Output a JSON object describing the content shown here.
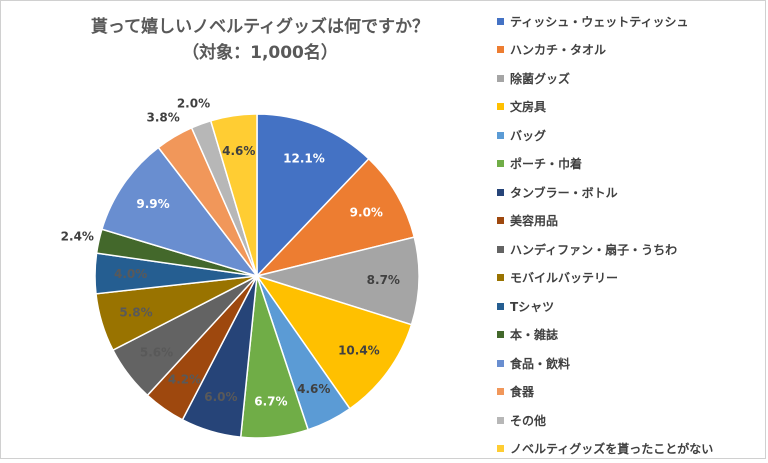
{
  "chart_data": {
    "type": "pie",
    "title": "貰って嬉しいノベルティグッズは何ですか？",
    "subtitle": "（対象：1,000名）",
    "legend_position": "right",
    "categories": [
      "ティッシュ・ウェットティッシュ",
      "ハンカチ・タオル",
      "除菌グッズ",
      "文房具",
      "バッグ",
      "ポーチ・巾着",
      "タンブラー・ボトル",
      "美容用品",
      "ハンディファン・扇子・うちわ",
      "モバイルバッテリー",
      "Tシャツ",
      "本・雑誌",
      "食品・飲料",
      "食器",
      "その他",
      "ノベルティグッズを貰ったことがない"
    ],
    "values": [
      12.1,
      9.0,
      8.7,
      10.4,
      4.6,
      6.7,
      6.0,
      4.2,
      5.6,
      5.8,
      4.0,
      2.4,
      9.9,
      3.8,
      2.0,
      4.6
    ],
    "labels": [
      "12.1%",
      "9.0%",
      "8.7%",
      "10.4%",
      "4.6%",
      "6.7%",
      "6.0%",
      "4.2%",
      "5.6%",
      "5.8%",
      "4.0%",
      "2.4%",
      "9.9%",
      "3.8%",
      "2.0%",
      "4.6%"
    ],
    "colors": [
      "#4472C4",
      "#ED7D31",
      "#A5A5A5",
      "#FFC000",
      "#5B9BD5",
      "#70AD47",
      "#264478",
      "#9E480E",
      "#636363",
      "#997300",
      "#255E91",
      "#43682B",
      "#698ED0",
      "#F1975A",
      "#B7B7B7",
      "#FFCD33"
    ]
  }
}
